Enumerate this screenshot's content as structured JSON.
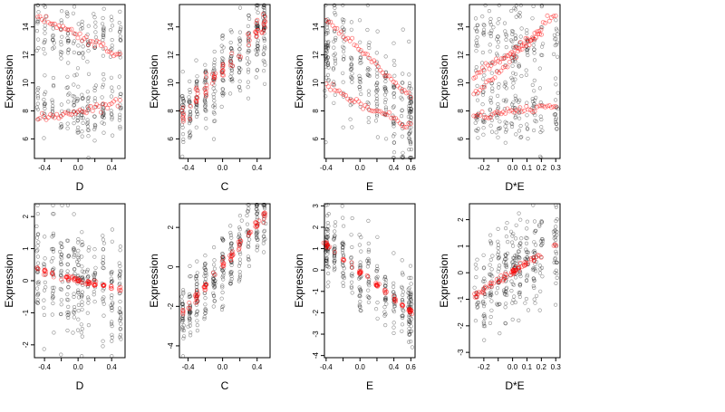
{
  "chart_data": [
    {
      "type": "scatter",
      "xlabel": "D",
      "ylabel": "Expression",
      "xlim": [
        -0.52,
        0.56
      ],
      "ylim": [
        4.6,
        15.6
      ],
      "xticks": [
        -0.4,
        -0.2,
        0.0,
        0.2,
        0.4
      ],
      "xtick_labels": [
        "-0.4",
        "",
        "0.0",
        "",
        "0.4"
      ],
      "yticks": [
        6,
        8,
        10,
        12,
        14
      ],
      "ytick_labels": [
        "6",
        "8",
        "10",
        "12",
        "14"
      ],
      "x_levels": [
        -0.48,
        -0.4,
        -0.3,
        -0.2,
        -0.12,
        -0.05,
        0.0,
        0.05,
        0.12,
        0.2,
        0.3,
        0.4,
        0.5
      ],
      "series": [
        {
          "role": "observed",
          "color": "#000000",
          "pattern": "bimodal",
          "cluster_centers": [
            8.0,
            13.5
          ],
          "spread": 1.6
        },
        {
          "role": "fitted",
          "color": "#ff0000",
          "pattern": "lines",
          "lines": [
            {
              "x": [
                -0.48,
                0.5
              ],
              "y": [
                7.4,
                8.6
              ]
            },
            {
              "x": [
                -0.48,
                0.5
              ],
              "y": [
                14.8,
                12.0
              ]
            }
          ]
        }
      ]
    },
    {
      "type": "scatter",
      "xlabel": "C",
      "ylabel": "Expression",
      "xlim": [
        -0.5,
        0.55
      ],
      "ylim": [
        4.6,
        15.6
      ],
      "xticks": [
        -0.4,
        -0.2,
        0.0,
        0.2,
        0.4
      ],
      "xtick_labels": [
        "-0.4",
        "",
        "0.0",
        "",
        "0.4"
      ],
      "yticks": [
        6,
        8,
        10,
        12,
        14
      ],
      "ytick_labels": [
        "6",
        "8",
        "10",
        "12",
        "14"
      ],
      "x_levels": [
        -0.46,
        -0.38,
        -0.3,
        -0.2,
        -0.1,
        0.0,
        0.1,
        0.2,
        0.3,
        0.4,
        0.48
      ],
      "series": [
        {
          "role": "observed",
          "color": "#000000",
          "pattern": "trend",
          "trend": {
            "x": [
              -0.46,
              0.48
            ],
            "y": [
              7.5,
              14.0
            ]
          },
          "spread": 1.4
        },
        {
          "role": "fitted",
          "color": "#ff0000",
          "pattern": "trend_points",
          "trend": {
            "x": [
              -0.46,
              0.48
            ],
            "y": [
              7.8,
              14.3
            ]
          },
          "spread": 0.45
        }
      ]
    },
    {
      "type": "scatter",
      "xlabel": "E",
      "ylabel": "Expression",
      "xlim": [
        -0.42,
        0.65
      ],
      "ylim": [
        4.6,
        15.6
      ],
      "xticks": [
        -0.4,
        -0.2,
        0.0,
        0.2,
        0.4,
        0.6
      ],
      "xtick_labels": [
        "-0.4",
        "",
        "0.0",
        "",
        "0.4",
        "0.6"
      ],
      "yticks": [
        6,
        8,
        10,
        12,
        14
      ],
      "ytick_labels": [
        "6",
        "8",
        "10",
        "12",
        "14"
      ],
      "x_levels": [
        -0.4,
        -0.38,
        -0.3,
        -0.2,
        -0.1,
        0.0,
        0.1,
        0.2,
        0.3,
        0.4,
        0.5,
        0.58,
        0.6
      ],
      "series": [
        {
          "role": "observed",
          "color": "#000000",
          "pattern": "trend",
          "trend": {
            "x": [
              -0.4,
              0.6
            ],
            "y": [
              12.5,
              7.5
            ]
          },
          "spread": 1.8
        },
        {
          "role": "fitted",
          "color": "#ff0000",
          "pattern": "lines",
          "lines": [
            {
              "x": [
                -0.4,
                0.6
              ],
              "y": [
                14.5,
                9.0
              ]
            },
            {
              "x": [
                -0.4,
                0.6
              ],
              "y": [
                9.8,
                6.8
              ]
            }
          ]
        }
      ]
    },
    {
      "type": "scatter",
      "xlabel": "D*E",
      "ylabel": "Expression",
      "xlim": [
        -0.3,
        0.33
      ],
      "ylim": [
        4.6,
        15.6
      ],
      "xticks": [
        -0.2,
        -0.1,
        0.0,
        0.1,
        0.2,
        0.3
      ],
      "xtick_labels": [
        "-0.2",
        "",
        "0.0",
        "0.1",
        "0.2",
        "0.3"
      ],
      "yticks": [
        6,
        8,
        10,
        12,
        14
      ],
      "ytick_labels": [
        "6",
        "8",
        "10",
        "12",
        "14"
      ],
      "x_levels": [
        -0.25,
        -0.2,
        -0.15,
        -0.1,
        -0.05,
        0.0,
        0.02,
        0.05,
        0.1,
        0.15,
        0.2,
        0.3
      ],
      "series": [
        {
          "role": "observed",
          "color": "#000000",
          "pattern": "bimodal",
          "cluster_centers": [
            8.0,
            13.0
          ],
          "spread": 1.8
        },
        {
          "role": "fitted",
          "color": "#ff0000",
          "pattern": "lines",
          "lines": [
            {
              "x": [
                -0.27,
                0.3
              ],
              "y": [
                7.6,
                8.4
              ]
            },
            {
              "x": [
                -0.27,
                0.3
              ],
              "y": [
                9.0,
                15.0
              ]
            },
            {
              "x": [
                -0.27,
                0.2
              ],
              "y": [
                10.5,
                13.5
              ]
            }
          ]
        }
      ]
    },
    {
      "type": "scatter",
      "xlabel": "D",
      "ylabel": "Expression",
      "xlim": [
        -0.52,
        0.56
      ],
      "ylim": [
        -2.4,
        2.4
      ],
      "xticks": [
        -0.4,
        -0.2,
        0.0,
        0.2,
        0.4
      ],
      "xtick_labels": [
        "-0.4",
        "",
        "0.0",
        "",
        "0.4"
      ],
      "yticks": [
        -2,
        -1,
        0,
        1,
        2
      ],
      "ytick_labels": [
        "-2",
        "-1",
        "0",
        "1",
        "2"
      ],
      "x_levels": [
        -0.48,
        -0.4,
        -0.3,
        -0.2,
        -0.12,
        -0.05,
        0.0,
        0.05,
        0.12,
        0.2,
        0.3,
        0.4,
        0.5
      ],
      "series": [
        {
          "role": "observed",
          "color": "#000000",
          "pattern": "trend",
          "trend": {
            "x": [
              -0.48,
              0.5
            ],
            "y": [
              0.3,
              -0.3
            ]
          },
          "spread": 0.9
        },
        {
          "role": "fitted",
          "color": "#ff0000",
          "pattern": "trend_points",
          "trend": {
            "x": [
              -0.48,
              0.5
            ],
            "y": [
              0.32,
              -0.3
            ]
          },
          "spread": 0.05
        }
      ]
    },
    {
      "type": "scatter",
      "xlabel": "C",
      "ylabel": "Expression",
      "xlim": [
        -0.5,
        0.55
      ],
      "ylim": [
        -4.6,
        3.2
      ],
      "xticks": [
        -0.4,
        -0.2,
        0.0,
        0.2,
        0.4
      ],
      "xtick_labels": [
        "-0.4",
        "",
        "0.0",
        "",
        "0.4"
      ],
      "yticks": [
        -4,
        -2,
        0,
        2
      ],
      "ytick_labels": [
        "-4",
        "-2",
        "0",
        "2"
      ],
      "x_levels": [
        -0.46,
        -0.38,
        -0.3,
        -0.2,
        -0.1,
        0.0,
        0.1,
        0.2,
        0.3,
        0.4,
        0.48
      ],
      "series": [
        {
          "role": "observed",
          "color": "#000000",
          "pattern": "trend",
          "trend": {
            "x": [
              -0.46,
              0.48
            ],
            "y": [
              -2.5,
              2.6
            ]
          },
          "spread": 0.9
        },
        {
          "role": "fitted",
          "color": "#ff0000",
          "pattern": "trend_points",
          "trend": {
            "x": [
              -0.46,
              0.48
            ],
            "y": [
              -2.3,
              2.6
            ]
          },
          "spread": 0.12
        }
      ]
    },
    {
      "type": "scatter",
      "xlabel": "E",
      "ylabel": "Expression",
      "xlim": [
        -0.42,
        0.65
      ],
      "ylim": [
        -4.1,
        3.1
      ],
      "xticks": [
        -0.4,
        -0.2,
        0.0,
        0.2,
        0.4,
        0.6
      ],
      "xtick_labels": [
        "-0.4",
        "",
        "0.0",
        "",
        "0.4",
        "0.6"
      ],
      "yticks": [
        -4,
        -3,
        -2,
        -1,
        0,
        1,
        2,
        3
      ],
      "ytick_labels": [
        "-4",
        "-3",
        "-2",
        "-1",
        "0",
        "1",
        "2",
        "3"
      ],
      "x_levels": [
        -0.4,
        -0.38,
        -0.3,
        -0.2,
        -0.1,
        0.0,
        0.1,
        0.2,
        0.3,
        0.4,
        0.5,
        0.58,
        0.6
      ],
      "series": [
        {
          "role": "observed",
          "color": "#000000",
          "pattern": "trend",
          "trend": {
            "x": [
              -0.4,
              0.6
            ],
            "y": [
              1.2,
              -1.9
            ]
          },
          "spread": 0.8
        },
        {
          "role": "fitted",
          "color": "#ff0000",
          "pattern": "trend_points",
          "trend": {
            "x": [
              -0.4,
              0.6
            ],
            "y": [
              1.15,
              -1.95
            ]
          },
          "spread": 0.06
        }
      ]
    },
    {
      "type": "scatter",
      "xlabel": "D*E",
      "ylabel": "Expression",
      "xlim": [
        -0.3,
        0.33
      ],
      "ylim": [
        -3.2,
        2.6
      ],
      "xticks": [
        -0.2,
        -0.1,
        0.0,
        0.1,
        0.2,
        0.3
      ],
      "xtick_labels": [
        "-0.2",
        "",
        "0.0",
        "0.1",
        "0.2",
        "0.3"
      ],
      "yticks": [
        -3,
        -2,
        -1,
        0,
        1,
        2
      ],
      "ytick_labels": [
        "-3",
        "-2",
        "-1",
        "0",
        "1",
        "2"
      ],
      "x_levels": [
        -0.25,
        -0.2,
        -0.15,
        -0.1,
        -0.05,
        0.0,
        0.02,
        0.05,
        0.1,
        0.15,
        0.2,
        0.3
      ],
      "series": [
        {
          "role": "observed",
          "color": "#000000",
          "pattern": "trend",
          "trend": {
            "x": [
              -0.27,
              0.3
            ],
            "y": [
              -0.8,
              1.0
            ]
          },
          "spread": 0.8
        },
        {
          "role": "fitted",
          "color": "#ff0000",
          "pattern": "trend_points",
          "trend": {
            "x": [
              -0.27,
              0.3
            ],
            "y": [
              -0.9,
              1.05
            ]
          },
          "spread": 0.06
        }
      ]
    }
  ]
}
